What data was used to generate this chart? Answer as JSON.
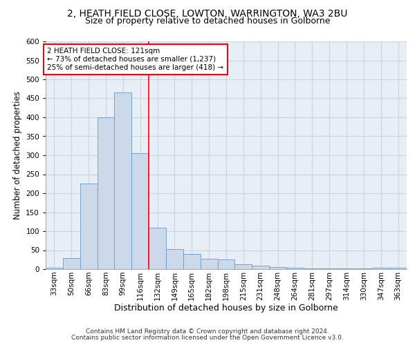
{
  "title1": "2, HEATH FIELD CLOSE, LOWTON, WARRINGTON, WA3 2BU",
  "title2": "Size of property relative to detached houses in Golborne",
  "xlabel": "Distribution of detached houses by size in Golborne",
  "ylabel": "Number of detached properties",
  "annotation_line1": "2 HEATH FIELD CLOSE: 121sqm",
  "annotation_line2": "← 73% of detached houses are smaller (1,237)",
  "annotation_line3": "25% of semi-detached houses are larger (418) →",
  "footnote1": "Contains HM Land Registry data © Crown copyright and database right 2024.",
  "footnote2": "Contains public sector information licensed under the Open Government Licence v3.0.",
  "categories": [
    "33sqm",
    "50sqm",
    "66sqm",
    "83sqm",
    "99sqm",
    "116sqm",
    "132sqm",
    "149sqm",
    "165sqm",
    "182sqm",
    "198sqm",
    "215sqm",
    "231sqm",
    "248sqm",
    "264sqm",
    "281sqm",
    "297sqm",
    "314sqm",
    "330sqm",
    "347sqm",
    "363sqm"
  ],
  "values": [
    3,
    30,
    225,
    400,
    465,
    305,
    110,
    52,
    40,
    27,
    25,
    12,
    10,
    5,
    3,
    2,
    1,
    1,
    1,
    4,
    4
  ],
  "bar_color": "#ccd9ea",
  "bar_edge_color": "#6699cc",
  "bg_color": "#e8eef6",
  "grid_color": "#c8d4e3",
  "red_line_x": 5.5,
  "ylim": [
    0,
    600
  ],
  "yticks": [
    0,
    50,
    100,
    150,
    200,
    250,
    300,
    350,
    400,
    450,
    500,
    550,
    600
  ],
  "title1_fontsize": 10,
  "title2_fontsize": 9,
  "tick_fontsize": 7.5,
  "ylabel_fontsize": 8.5,
  "xlabel_fontsize": 9,
  "footnote_fontsize": 6.5
}
